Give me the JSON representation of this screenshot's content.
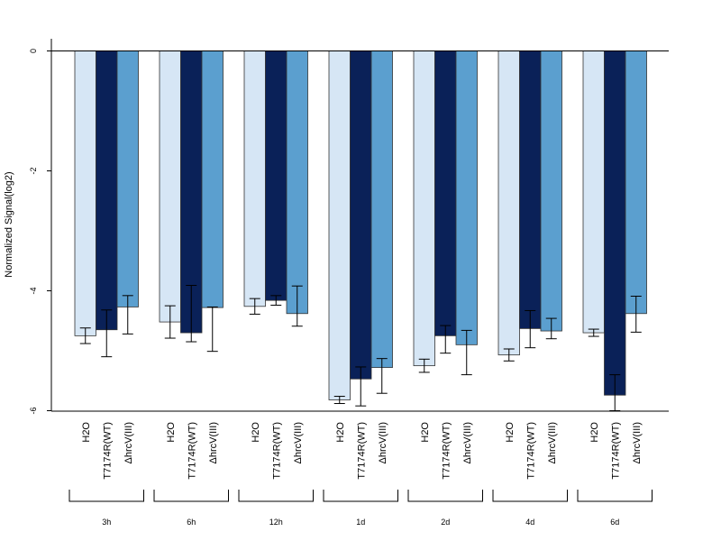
{
  "chart_data": {
    "type": "bar",
    "ylabel": "Normalized Signal(log2)",
    "ylim": [
      -6,
      0.2
    ],
    "yticks": [
      0,
      -2,
      -4,
      -6
    ],
    "grid": false,
    "conditions": [
      "H2O",
      "T7174R(WT)",
      "ΔhrcV(III)"
    ],
    "groups": [
      "3h",
      "6h",
      "12h",
      "1d",
      "2d",
      "4d",
      "6d"
    ],
    "colors": [
      "#d6e6f5",
      "#0a2158",
      "#5b9fcf"
    ],
    "series": [
      {
        "values": [
          -4.75,
          -4.52,
          -4.26,
          -5.82,
          -5.25,
          -5.07,
          -4.7
        ],
        "err_low": [
          -4.88,
          -4.79,
          -4.39,
          -5.88,
          -5.36,
          -5.17,
          -4.76
        ],
        "err_high": [
          -4.62,
          -4.25,
          -4.13,
          -5.76,
          -5.14,
          -4.97,
          -4.64
        ]
      },
      {
        "values": [
          -4.65,
          -4.7,
          -4.16,
          -5.47,
          -4.75,
          -4.63,
          -5.74
        ],
        "err_low": [
          -5.1,
          -4.85,
          -4.24,
          -5.92,
          -5.04,
          -4.95,
          -6.0
        ],
        "err_high": [
          -4.32,
          -3.91,
          -4.08,
          -5.27,
          -4.58,
          -4.33,
          -5.4
        ]
      },
      {
        "values": [
          -4.27,
          -4.28,
          -4.38,
          -5.28,
          -4.9,
          -4.67,
          -4.38
        ],
        "err_low": [
          -4.72,
          -5.01,
          -4.59,
          -5.71,
          -5.4,
          -4.8,
          -4.69
        ],
        "err_high": [
          -4.08,
          -4.27,
          -3.92,
          -5.13,
          -4.66,
          -4.46,
          -4.09
        ]
      }
    ]
  }
}
